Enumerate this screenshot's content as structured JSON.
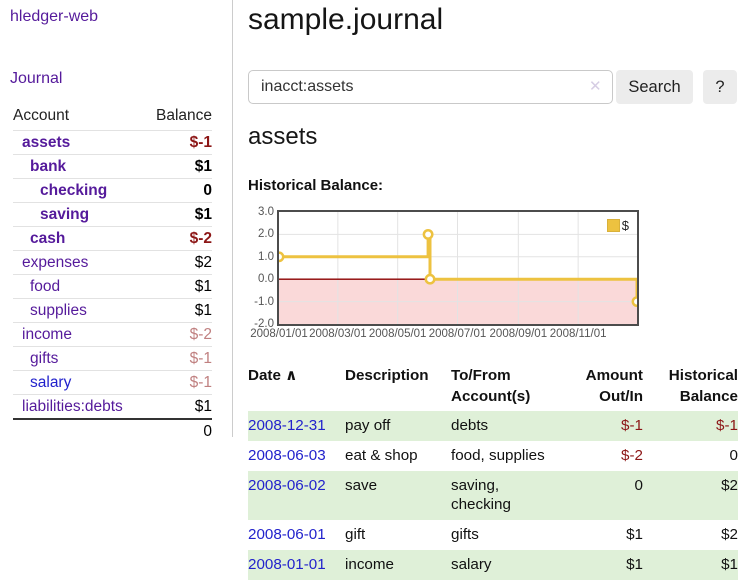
{
  "app": {
    "brand": "hledger-web",
    "nav": {
      "journal": "Journal"
    }
  },
  "colors": {
    "link_purple": "#551a9b",
    "link_blue": "#2222cc",
    "negative_dark": "#8c1616",
    "negative_light": "#c08080",
    "row_stripe_green": "#dff0d8",
    "chart_gold": "#EDC240",
    "chart_negative_fill": "#fad9d9",
    "chart_zero_line": "#8b0000"
  },
  "sidebar": {
    "headers": {
      "account": "Account",
      "balance": "Balance"
    },
    "accounts": [
      {
        "name": "assets",
        "level": 1,
        "bold": true,
        "balance": "$-1"
      },
      {
        "name": "bank",
        "level": 2,
        "bold": true,
        "balance": "$1"
      },
      {
        "name": "checking",
        "level": 3,
        "bold": true,
        "balance": "0"
      },
      {
        "name": "saving",
        "level": 3,
        "bold": true,
        "balance": "$1"
      },
      {
        "name": "cash",
        "level": 2,
        "bold": true,
        "balance": "$-2"
      },
      {
        "name": "expenses",
        "level": 1,
        "bold": false,
        "balance": "$2"
      },
      {
        "name": "food",
        "level": 2,
        "bold": false,
        "balance": "$1"
      },
      {
        "name": "supplies",
        "level": 2,
        "bold": false,
        "balance": "$1"
      },
      {
        "name": "income",
        "level": 1,
        "bold": false,
        "balance": "$-2"
      },
      {
        "name": "gifts",
        "level": 2,
        "bold": false,
        "balance": "$-1"
      },
      {
        "name": "salary",
        "level": 2,
        "bold": false,
        "balance": "$-1",
        "link_style": "blue"
      },
      {
        "name": "liabilities:debts",
        "level": 1,
        "bold": false,
        "balance": "$1"
      }
    ],
    "total": "0"
  },
  "header": {
    "title": "sample.journal"
  },
  "search": {
    "value": "inacct:assets",
    "clear_icon": "✕",
    "button_label": "Search",
    "help_label": "?"
  },
  "account_page": {
    "heading": "assets",
    "chart_label": "Historical Balance:"
  },
  "chart_data": {
    "type": "line",
    "style": "step",
    "title": "Historical Balance",
    "series": [
      {
        "name": "$",
        "color": "#EDC240",
        "points": [
          [
            "2008-01-01",
            1.0
          ],
          [
            "2008-06-01",
            2.0
          ],
          [
            "2008-06-03",
            0.0
          ],
          [
            "2008-12-31",
            -1.0
          ]
        ]
      }
    ],
    "ylim": [
      -2.0,
      3.0
    ],
    "yticks": [
      3.0,
      2.0,
      1.0,
      0.0,
      -1.0,
      -2.0
    ],
    "xlim": [
      "2008-01-01",
      "2008-12-31"
    ],
    "xticks": [
      "2008/01/01",
      "2008/03/01",
      "2008/05/01",
      "2008/07/01",
      "2008/09/01",
      "2008/11/01"
    ],
    "legend": {
      "label": "$",
      "position": "top-right"
    },
    "grid": true,
    "negative_fill": "#fad9d9",
    "zero_line_color": "#8b0000",
    "grid_color": "#e3e3e3"
  },
  "register": {
    "headers": [
      {
        "lines": [
          "Date"
        ],
        "align": "left",
        "sort_icon": "∧"
      },
      {
        "lines": [
          "Description"
        ],
        "align": "left"
      },
      {
        "lines": [
          "To/From",
          "Account(s)"
        ],
        "align": "left"
      },
      {
        "lines": [
          "Amount",
          "Out/In"
        ],
        "align": "right"
      },
      {
        "lines": [
          "Historical",
          "Balance"
        ],
        "align": "right"
      }
    ],
    "rows": [
      {
        "date": "2008-12-31",
        "description": "pay off",
        "accounts": "debts",
        "amount": "$-1",
        "balance": "$-1"
      },
      {
        "date": "2008-06-03",
        "description": "eat & shop",
        "accounts": "food, supplies",
        "amount": "$-2",
        "balance": "0"
      },
      {
        "date": "2008-06-02",
        "description": "save",
        "accounts": "saving, checking",
        "amount": "0",
        "balance": "$2"
      },
      {
        "date": "2008-06-01",
        "description": "gift",
        "accounts": "gifts",
        "amount": "$1",
        "balance": "$2"
      },
      {
        "date": "2008-01-01",
        "description": "income",
        "accounts": "salary",
        "amount": "$1",
        "balance": "$1"
      }
    ]
  }
}
